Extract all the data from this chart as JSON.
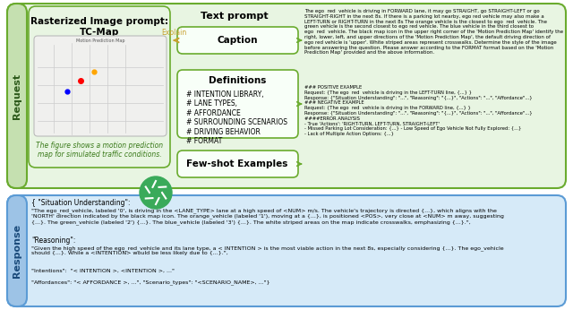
{
  "fig_width": 6.4,
  "fig_height": 3.46,
  "dpi": 100,
  "bg_color": "#ffffff",
  "green_box_bg": "#e8f5e2",
  "green_box_border": "#6aab2e",
  "blue_box_bg": "#d6eaf8",
  "blue_box_border": "#5b9bd5",
  "arrow_color": "#6aab2e",
  "explain_arrow_color": "#c8a02e",
  "gpt_circle_color": "#3aaa5a",
  "title_text": "Rasterized Image prompt:\nTC-Map",
  "textprompt_title": "Text prompt",
  "caption_label": "Caption",
  "definitions_label": "Definitions",
  "fewshot_label": "Few-shot Examples",
  "explain_label": "Explain",
  "definitions_items": "# INTENTION LIBRARY,\n# LANE TYPES,\n# AFFORDANCE\n# SURROUNDING SCENARIOS\n# DRIVING BEHAVIOR\n# FORMAT",
  "map_caption": "The figure shows a motion prediction\nmap for simulated traffic conditions.",
  "request_sidebar": "Request",
  "response_sidebar": "Response",
  "response_text_1": "{ \"Situation Understanding\":",
  "response_text_2": "\"The ego_red_vehicle, labeled '0', is driving in the <LANE_TYPE> lane at a high speed of <NUM> m/s. The vehicle's trajectory is directed {...}, which aligns with the\n'NORTH' direction indicated by the black map icon. The orange_vehicle (labeled '1'), moving at a {...}, is positioned <POS>, very close at <NUM> m away, suggesting\n{...}. The green_vehicle (labeled '2') {...}. The blue_vehicle (labeled '3') {...}. The white striped areas on the map indicate crosswalks, emphasizing {...}.\",",
  "response_text_3": "\"Reasoning\":",
  "response_text_4": "\"Given the high speed of the ego_red_vehicle and its lane type, a < INTENTION > is the most viable action in the next 8s, especially considering {...}. The ego_vehicle\nshould {...}. While a <INTENTION> would be less likely due to {...}.\",",
  "response_text_5": "\"Intentions\":  \"< INTENTION >, <INTENTION >, ...\"",
  "response_text_6": "\"Affordances\": \"< AFFORDANCE >, ...\", \"Scenario_types\": \"<SCENARIO_NAME>, ...\"}"
}
